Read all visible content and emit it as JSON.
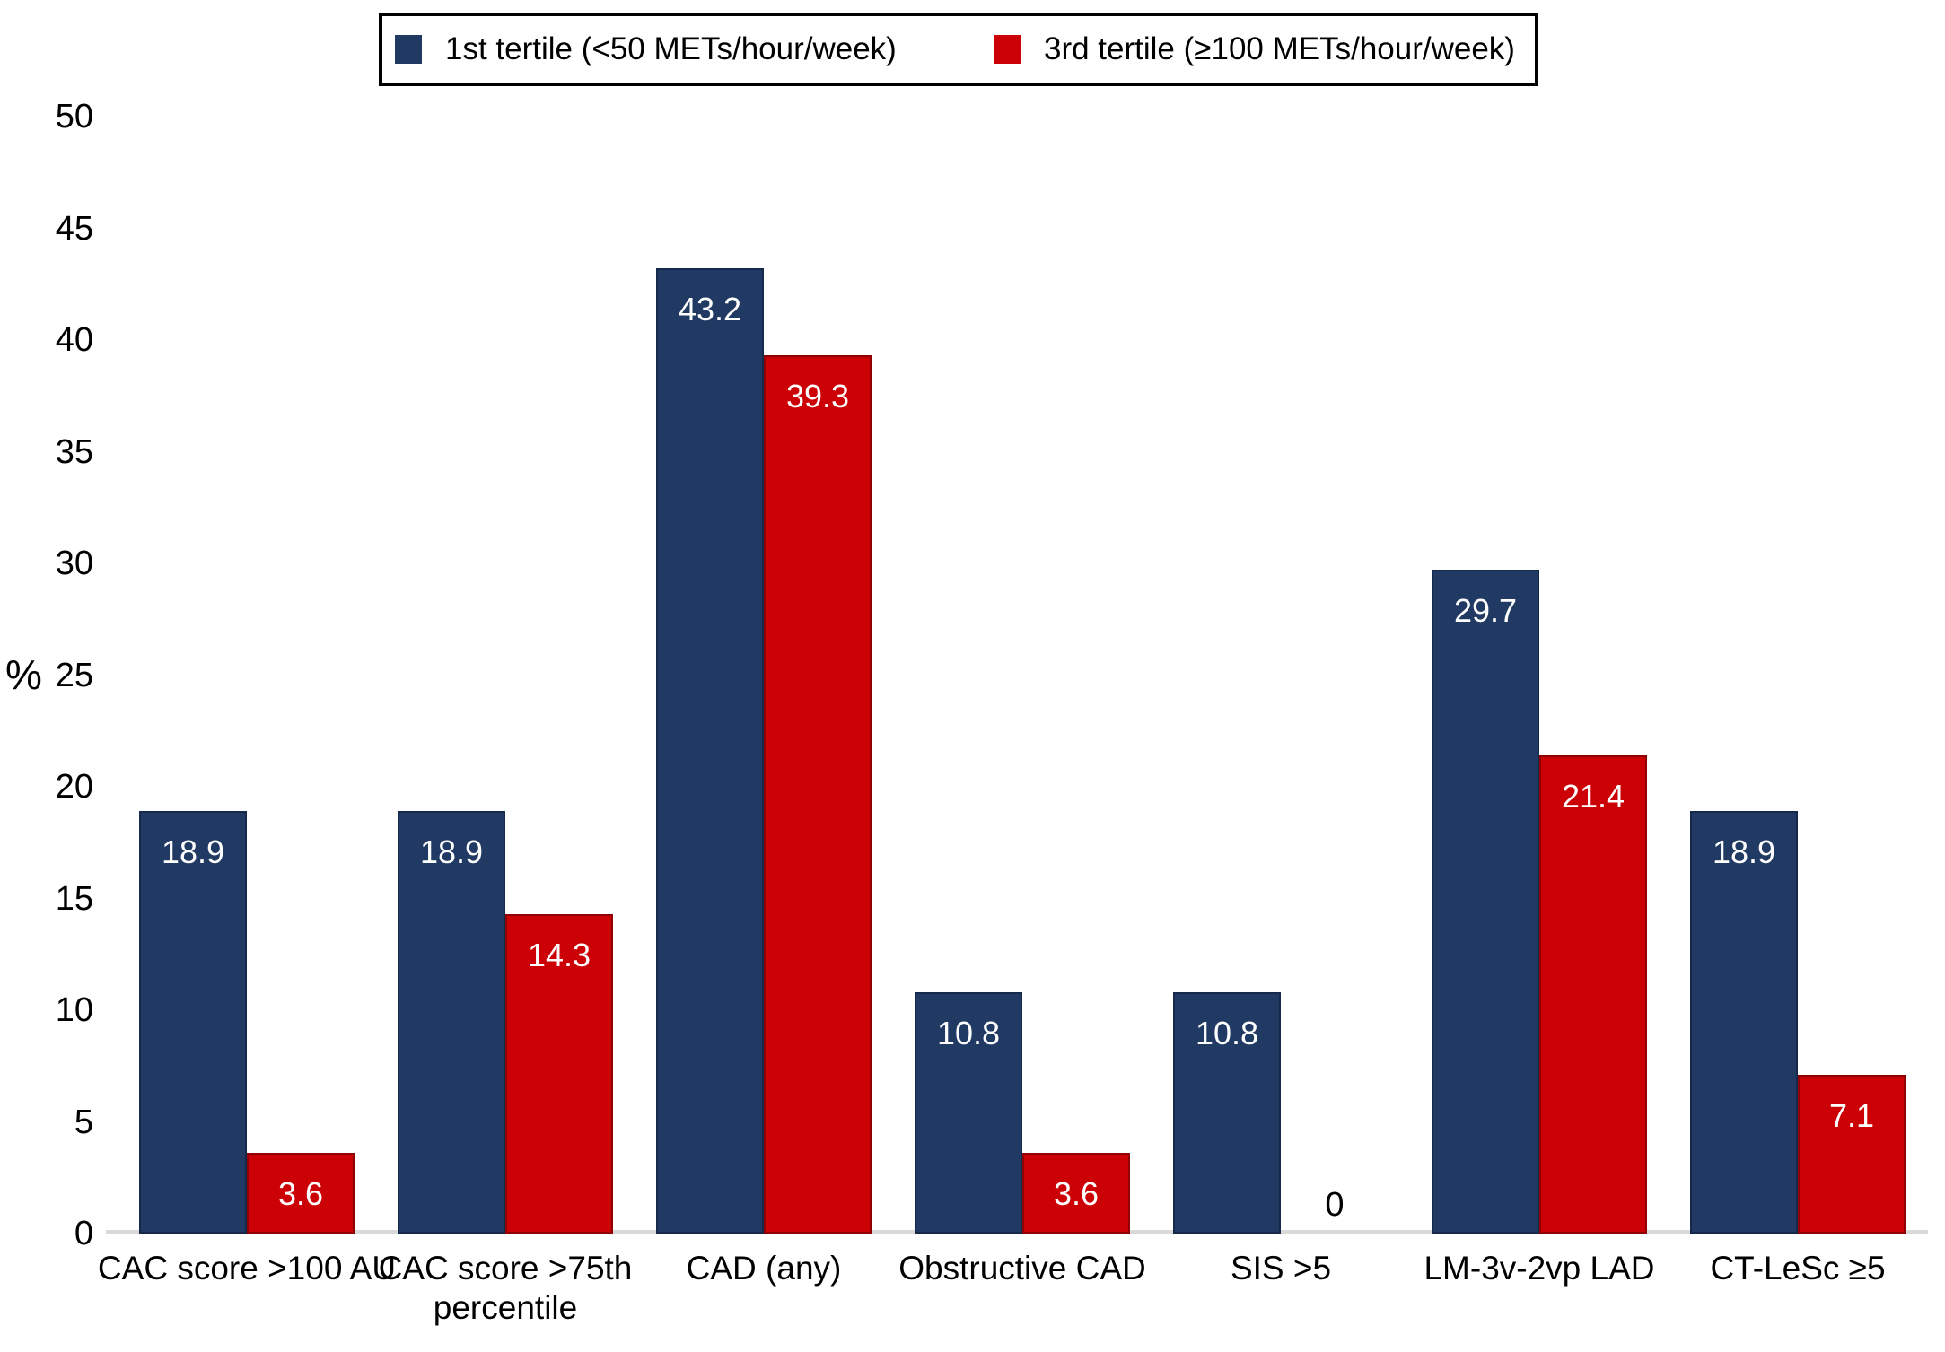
{
  "chart_data": {
    "type": "bar",
    "title": "",
    "xlabel": "",
    "ylabel": "%",
    "ylim": [
      0,
      50
    ],
    "yticks": [
      0,
      5,
      10,
      15,
      20,
      25,
      30,
      35,
      40,
      45,
      50
    ],
    "grid": false,
    "legend_position": "top",
    "categories": [
      "CAC score >100 AU",
      "CAC score >75th percentile",
      "CAD (any)",
      "Obstructive CAD",
      "SIS >5",
      "LM-3v-2vp LAD",
      "CT-LeSc ≥5"
    ],
    "series": [
      {
        "name": "1st tertile (<50 METs/hour/week)",
        "color": "#213A63",
        "border_color": "#17294A",
        "values": [
          18.9,
          18.9,
          43.2,
          10.8,
          10.8,
          29.7,
          18.9
        ]
      },
      {
        "name": "3rd tertile (≥100 METs/hour/week)",
        "color": "#CC0105",
        "border_color": "#8E0003",
        "values": [
          3.6,
          14.3,
          39.3,
          3.6,
          0,
          21.4,
          7.1
        ]
      }
    ],
    "value_labels_shown": true,
    "value_label_color": "#FFFFFF",
    "zero_label_color": "#000000",
    "axis_line_color": "#D9D9D9",
    "legend_border_color": "#000000",
    "text_color": "#000000"
  }
}
